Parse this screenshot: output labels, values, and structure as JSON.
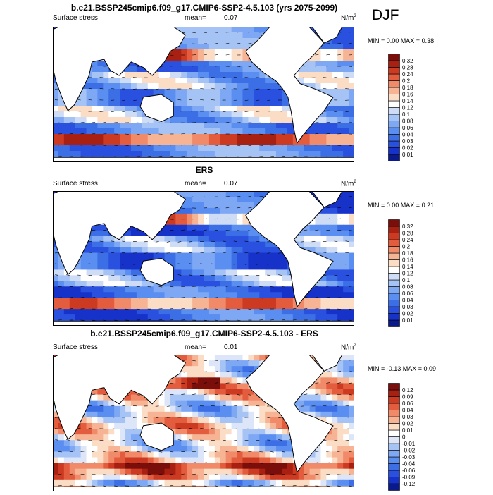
{
  "season": "DJF",
  "chart_data": [
    {
      "type": "heatmap",
      "title": "b.e21.BSSP245cmip6.f09_g17.CMIP6-SSP2-4.5.103 (yrs 2075-2099)",
      "left_label": "Surface stress",
      "mean_label": "mean=",
      "mean_value": "0.07",
      "units_base": "N/m",
      "units_exp": "2",
      "min_label": "MIN =",
      "min_value": "0.00",
      "max_label": "MAX =",
      "max_value": "0.38",
      "colorbar_levels": [
        "0.01",
        "0.02",
        "0.03",
        "0.04",
        "0.06",
        "0.08",
        "0.1",
        "0.12",
        "0.14",
        "0.16",
        "0.18",
        "0.2",
        "0.24",
        "0.28",
        "0.32"
      ],
      "colorbar_colors": [
        "#0a1a8c",
        "#1732c8",
        "#2a50e0",
        "#3c6ee6",
        "#5a8ef0",
        "#7ea8f4",
        "#a6c3f6",
        "#cedcf6",
        "#ffffff",
        "#fbdcc4",
        "#f6b494",
        "#f08a68",
        "#e45c3e",
        "#cc3a22",
        "#a82012",
        "#7a0e0a"
      ]
    },
    {
      "type": "heatmap",
      "title": "ERS",
      "left_label": "Surface stress",
      "mean_label": "mean=",
      "mean_value": "0.07",
      "units_base": "N/m",
      "units_exp": "2",
      "min_label": "MIN =",
      "min_value": "0.00",
      "max_label": "MAX =",
      "max_value": "0.21",
      "colorbar_levels": [
        "0.01",
        "0.02",
        "0.03",
        "0.04",
        "0.06",
        "0.08",
        "0.1",
        "0.12",
        "0.14",
        "0.16",
        "0.18",
        "0.2",
        "0.24",
        "0.28",
        "0.32"
      ],
      "colorbar_colors": [
        "#0a1a8c",
        "#1732c8",
        "#2a50e0",
        "#3c6ee6",
        "#5a8ef0",
        "#7ea8f4",
        "#a6c3f6",
        "#cedcf6",
        "#ffffff",
        "#fbdcc4",
        "#f6b494",
        "#f08a68",
        "#e45c3e",
        "#cc3a22",
        "#a82012",
        "#7a0e0a"
      ]
    },
    {
      "type": "heatmap",
      "title": "b.e21.BSSP245cmip6.f09_g17.CMIP6-SSP2-4.5.103 - ERS",
      "left_label": "Surface stress",
      "mean_label": "mean=",
      "mean_value": "0.01",
      "units_base": "N/m",
      "units_exp": "2",
      "min_label": "MIN =",
      "min_value": "-0.13",
      "max_label": "MAX =",
      "max_value": "0.09",
      "colorbar_levels": [
        "-0.12",
        "-0.09",
        "-0.06",
        "-0.04",
        "-0.03",
        "-0.02",
        "-0.01",
        "0",
        "0.01",
        "0.02",
        "0.03",
        "0.04",
        "0.06",
        "0.09",
        "0.12"
      ],
      "colorbar_colors": [
        "#0a1a8c",
        "#1732c8",
        "#2a50e0",
        "#3c6ee6",
        "#5a8ef0",
        "#7ea8f4",
        "#a6c3f6",
        "#dce6f8",
        "#ffffff",
        "#fbdcc4",
        "#f6b494",
        "#f08a68",
        "#e45c3e",
        "#cc3a22",
        "#a82012",
        "#7a0e0a"
      ]
    }
  ]
}
